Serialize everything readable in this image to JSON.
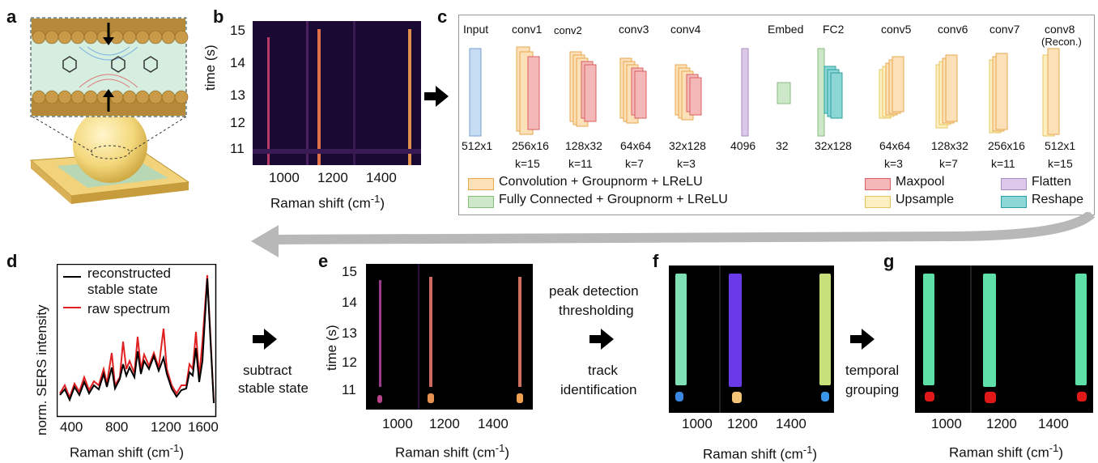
{
  "panels": {
    "a": "a",
    "b": "b",
    "c": "c",
    "d": "d",
    "e": "e",
    "f": "f",
    "g": "g"
  },
  "panel_b": {
    "ylabel": "time (s)",
    "yticks": [
      "15",
      "14",
      "13",
      "12",
      "11"
    ],
    "xticks": [
      "1000",
      "1200",
      "1400"
    ],
    "xlabel": "Raman shift (cm",
    "xlabel_sup": "-1",
    "xlabel_end": ")"
  },
  "network": {
    "layers": [
      {
        "name": "Input",
        "size": "512x1",
        "k": ""
      },
      {
        "name": "conv1",
        "size": "256x16",
        "k": "k=15"
      },
      {
        "name": "conv2",
        "size": "128x32",
        "k": "k=11"
      },
      {
        "name": "conv3",
        "size": "64x64",
        "k": "k=7"
      },
      {
        "name": "conv4",
        "size": "32x128",
        "k": "k=3"
      },
      {
        "name": "",
        "size": "4096",
        "k": ""
      },
      {
        "name": "Embed",
        "size": "32",
        "k": ""
      },
      {
        "name": "FC2",
        "size": "32x128",
        "k": ""
      },
      {
        "name": "conv5",
        "size": "64x64",
        "k": "k=3"
      },
      {
        "name": "conv6",
        "size": "128x32",
        "k": "k=7"
      },
      {
        "name": "conv7",
        "size": "256x16",
        "k": "k=11"
      },
      {
        "name": "conv8",
        "size": "512x1",
        "k": "k=15"
      }
    ],
    "conv8_sub": "(Recon.)",
    "legend": {
      "conv": "Convolution + Groupnorm + LReLU",
      "fc": "Fully Connected + Groupnorm + LReLU",
      "maxpool": "Maxpool",
      "upsample": "Upsample",
      "flatten": "Flatten",
      "reshape": "Reshape"
    },
    "colors": {
      "conv": "#fbe0b8",
      "conv_border": "#e8a94e",
      "maxpool": "#f5b8b8",
      "maxpool_border": "#d9605f",
      "upsample": "#fdf0c0",
      "upsample_border": "#e8c460",
      "flatten": "#dcc8e8",
      "flatten_border": "#a98cc2",
      "reshape": "#8cd6d6",
      "reshape_border": "#2aa0a0",
      "fc": "#cde8c8",
      "fc_border": "#86bd7c",
      "input": "#c6dcf2",
      "input_border": "#7aa2cf"
    }
  },
  "panel_d": {
    "ylabel": "norm. SERS intensity",
    "legend_black_1": "reconstructed",
    "legend_black_2": "stable state",
    "legend_red": "raw spectrum",
    "xticks": [
      "400",
      "800",
      "1200",
      "1600"
    ],
    "xlabel": "Raman shift (cm",
    "xlabel_sup": "-1",
    "xlabel_end": ")"
  },
  "step_subtract": [
    "subtract",
    "stable state"
  ],
  "step_peak": [
    "peak detection",
    "thresholding"
  ],
  "step_track": [
    "track",
    "identification"
  ],
  "step_temporal": [
    "temporal",
    "grouping"
  ],
  "panel_e": {
    "ylabel": "time (s)",
    "yticks": [
      "15",
      "14",
      "13",
      "12",
      "11"
    ],
    "xticks": [
      "1000",
      "1200",
      "1400"
    ],
    "xlabel": "Raman shift (cm",
    "xlabel_sup": "-1",
    "xlabel_end": ")"
  },
  "panel_f": {
    "xticks": [
      "1000",
      "1200",
      "1400"
    ],
    "xlabel": "Raman shift (cm",
    "xlabel_sup": "-1",
    "xlabel_end": ")"
  },
  "panel_g": {
    "xticks": [
      "1000",
      "1200",
      "1400"
    ],
    "xlabel": "Raman shift (cm",
    "xlabel_sup": "-1",
    "xlabel_end": ")"
  }
}
